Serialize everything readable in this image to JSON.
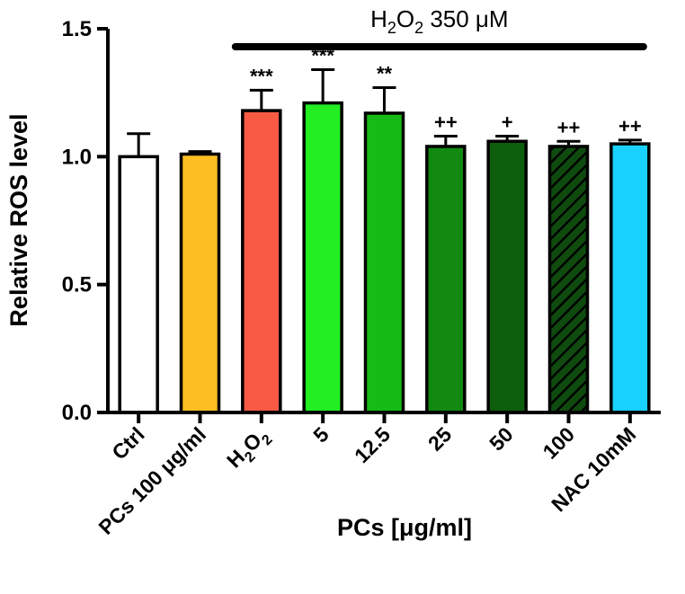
{
  "chart_data": {
    "type": "bar",
    "title": "",
    "xlabel": "PCs [μg/ml]",
    "ylabel": "Relative ROS level",
    "ylim": [
      0,
      1.5
    ],
    "yticks": [
      "0.0",
      "0.5",
      "1.0",
      "1.5"
    ],
    "grid": false,
    "bracket": {
      "label_main": "H",
      "label_sub1": "2",
      "label_mid": "O",
      "label_sub2": "2",
      "label_rest": " 350 μM",
      "from_category": 2,
      "to_category": 8
    },
    "categories": [
      {
        "label": "Ctrl",
        "value": 1.0,
        "error": 0.09,
        "color": "#ffffff",
        "significance": ""
      },
      {
        "label": "PCs 100 μg/ml",
        "value": 1.01,
        "error": 0.01,
        "color": "#fbbf24",
        "significance": ""
      },
      {
        "label_main": "H",
        "label_sub1": "2",
        "label_mid": "O",
        "label_sub2": "2",
        "value": 1.18,
        "error": 0.08,
        "color": "#f85a44",
        "significance": "***"
      },
      {
        "label": "5",
        "value": 1.21,
        "error": 0.13,
        "color": "#22ee22",
        "significance": "***"
      },
      {
        "label": "12.5",
        "value": 1.17,
        "error": 0.1,
        "color": "#16bb16",
        "significance": "**"
      },
      {
        "label": "25",
        "value": 1.04,
        "error": 0.04,
        "color": "#128a12",
        "significance": "++"
      },
      {
        "label": "50",
        "value": 1.06,
        "error": 0.02,
        "color": "#0c5e0c",
        "significance": "+"
      },
      {
        "label": "100",
        "value": 1.04,
        "error": 0.02,
        "color": "#0f4a0f",
        "pattern": "diagonal-hatch",
        "significance": "++"
      },
      {
        "label": "NAC 10mM",
        "value": 1.05,
        "error": 0.015,
        "color": "#19d1ff",
        "significance": "++"
      }
    ]
  }
}
